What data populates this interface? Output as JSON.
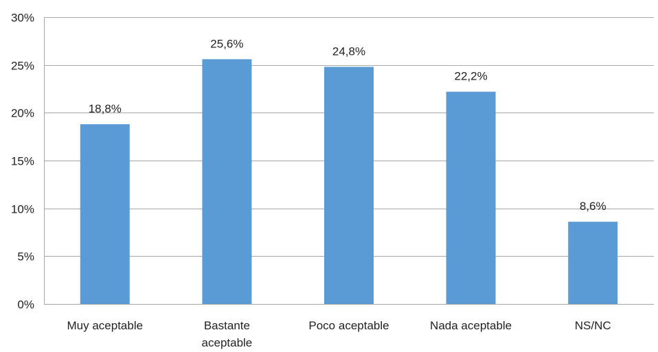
{
  "chart_data": {
    "type": "bar",
    "title": "",
    "xlabel": "",
    "ylabel": "",
    "categories": [
      [
        "Muy aceptable"
      ],
      [
        "Bastante",
        "aceptable"
      ],
      [
        "Poco aceptable"
      ],
      [
        "Nada aceptable"
      ],
      [
        "NS/NC"
      ]
    ],
    "values": [
      18.8,
      25.6,
      24.8,
      22.2,
      8.6
    ],
    "data_labels": [
      "18,8%",
      "25,6%",
      "24,8%",
      "22,2%",
      "8,6%"
    ],
    "ylim": [
      0,
      30
    ],
    "y_ticks": [
      0,
      5,
      10,
      15,
      20,
      25,
      30
    ],
    "y_tick_labels": [
      "0%",
      "5%",
      "10%",
      "15%",
      "20%",
      "25%",
      "30%"
    ],
    "grid": true,
    "legend": "none",
    "colors": {
      "bar": "#5b9bd5",
      "grid": "#a6a6a6",
      "axis": "#a6a6a6"
    }
  }
}
